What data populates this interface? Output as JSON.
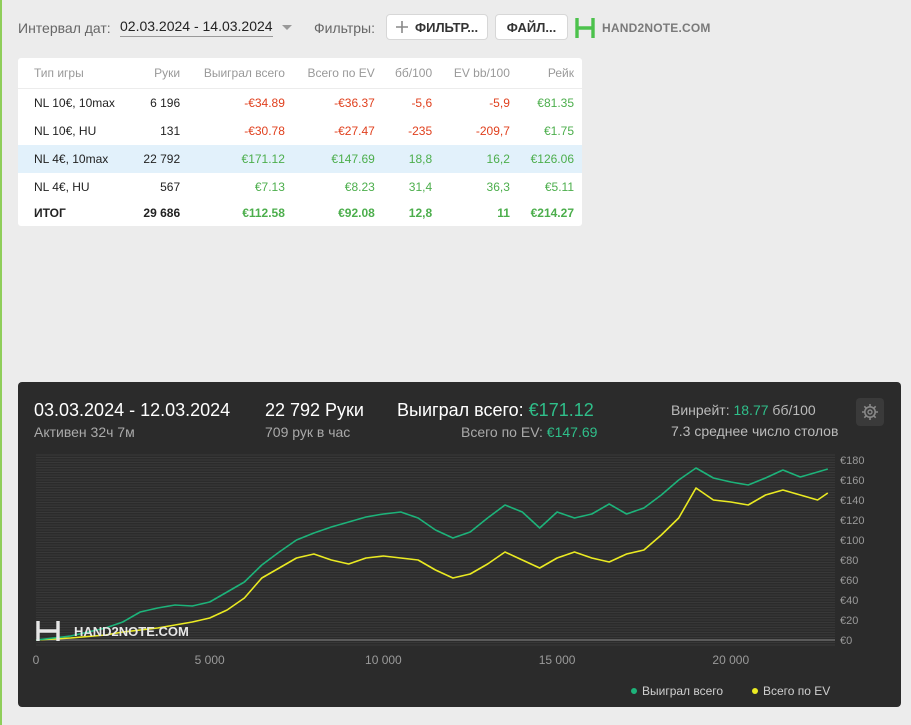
{
  "toolbar": {
    "interval_label": "Интервал дат:",
    "date_range": "02.03.2024 - 14.03.2024",
    "filters_label": "Фильтры:",
    "filter_button": "ФИЛЬТР...",
    "file_button": "ФАЙЛ...",
    "logo_text": "HAND2NOTE.COM"
  },
  "table": {
    "headers": [
      "Тип игры",
      "Руки",
      "Выиграл всего",
      "Всего по EV",
      "бб/100",
      "EV bb/100",
      "Рейк"
    ],
    "rows": [
      {
        "game": "NL 10€, 10max",
        "hands": "6 196",
        "won": "-€34.89",
        "ev": "-€36.37",
        "bb": "-5,6",
        "evbb": "-5,9",
        "rake": "€81.35",
        "selected": false
      },
      {
        "game": "NL 10€, HU",
        "hands": "131",
        "won": "-€30.78",
        "ev": "-€27.47",
        "bb": "-235",
        "evbb": "-209,7",
        "rake": "€1.75",
        "selected": false
      },
      {
        "game": "NL 4€, 10max",
        "hands": "22 792",
        "won": "€171.12",
        "ev": "€147.69",
        "bb": "18,8",
        "evbb": "16,2",
        "rake": "€126.06",
        "selected": true
      },
      {
        "game": "NL 4€, HU",
        "hands": "567",
        "won": "€7.13",
        "ev": "€8.23",
        "bb": "31,4",
        "evbb": "36,3",
        "rake": "€5.11",
        "selected": false
      }
    ],
    "total": {
      "game": "ИТОГ",
      "hands": "29 686",
      "won": "€112.58",
      "ev": "€92.08",
      "bb": "12,8",
      "evbb": "11",
      "rake": "€214.27"
    }
  },
  "chart_panel": {
    "period": "03.03.2024 - 12.03.2024",
    "active": "Активен 32ч 7м",
    "hands": "22 792 Руки",
    "hands_per_hour": "709 рук в час",
    "won_label": "Выиграл всего:",
    "won_value": "€171.12",
    "ev_label": "Всего по EV:",
    "ev_value": "€147.69",
    "winrate_label": "Винрейт:",
    "winrate_value": "18.77",
    "winrate_unit": "бб/100",
    "avg_tables": "7.3 среднее число столов",
    "watermark": "HAND2NOTE.COM"
  },
  "chart_data": {
    "type": "line",
    "xlim": [
      0,
      23000
    ],
    "ylim": [
      -5,
      185
    ],
    "xticks": [
      0,
      5000,
      10000,
      15000,
      20000
    ],
    "xtick_labels": [
      "0",
      "5 000",
      "10 000",
      "15 000",
      "20 000"
    ],
    "yticks": [
      0,
      20,
      40,
      60,
      80,
      100,
      120,
      140,
      160,
      180
    ],
    "ytick_labels": [
      "€0",
      "€20",
      "€40",
      "€60",
      "€80",
      "€100",
      "€120",
      "€140",
      "€160",
      "€180"
    ],
    "legend_position": "bottom",
    "series": [
      {
        "name": "Выиграл всего",
        "color": "#1db37a",
        "x": [
          0,
          1000,
          2000,
          2500,
          3000,
          3500,
          4000,
          4500,
          5000,
          5500,
          6000,
          6500,
          7000,
          7500,
          8000,
          8500,
          9000,
          9500,
          10000,
          10500,
          11000,
          11500,
          12000,
          12500,
          13000,
          13500,
          14000,
          14500,
          15000,
          15500,
          16000,
          16500,
          17000,
          17500,
          18000,
          18500,
          19000,
          19500,
          20000,
          20500,
          21000,
          21500,
          22000,
          22500,
          22792
        ],
        "y": [
          0,
          4,
          12,
          18,
          28,
          32,
          35,
          34,
          38,
          48,
          58,
          75,
          88,
          100,
          107,
          113,
          118,
          123,
          126,
          128,
          122,
          110,
          102,
          108,
          122,
          135,
          128,
          112,
          128,
          122,
          126,
          136,
          126,
          132,
          145,
          160,
          172,
          162,
          158,
          155,
          162,
          170,
          163,
          168,
          171
        ]
      },
      {
        "name": "Всего по EV",
        "color": "#eaea22",
        "x": [
          0,
          1000,
          2000,
          2500,
          3000,
          3500,
          4000,
          4500,
          5000,
          5500,
          6000,
          6500,
          7000,
          7500,
          8000,
          8500,
          9000,
          9500,
          10000,
          10500,
          11000,
          11500,
          12000,
          12500,
          13000,
          13500,
          14000,
          14500,
          15000,
          15500,
          16000,
          16500,
          17000,
          17500,
          18000,
          18500,
          19000,
          19500,
          20000,
          20500,
          21000,
          21500,
          22000,
          22500,
          22792
        ],
        "y": [
          0,
          2,
          5,
          8,
          10,
          12,
          15,
          18,
          22,
          30,
          42,
          62,
          72,
          82,
          86,
          80,
          76,
          82,
          84,
          82,
          80,
          70,
          62,
          66,
          76,
          88,
          80,
          72,
          82,
          88,
          82,
          78,
          86,
          90,
          105,
          122,
          152,
          140,
          138,
          135,
          145,
          150,
          145,
          140,
          147
        ]
      }
    ]
  }
}
